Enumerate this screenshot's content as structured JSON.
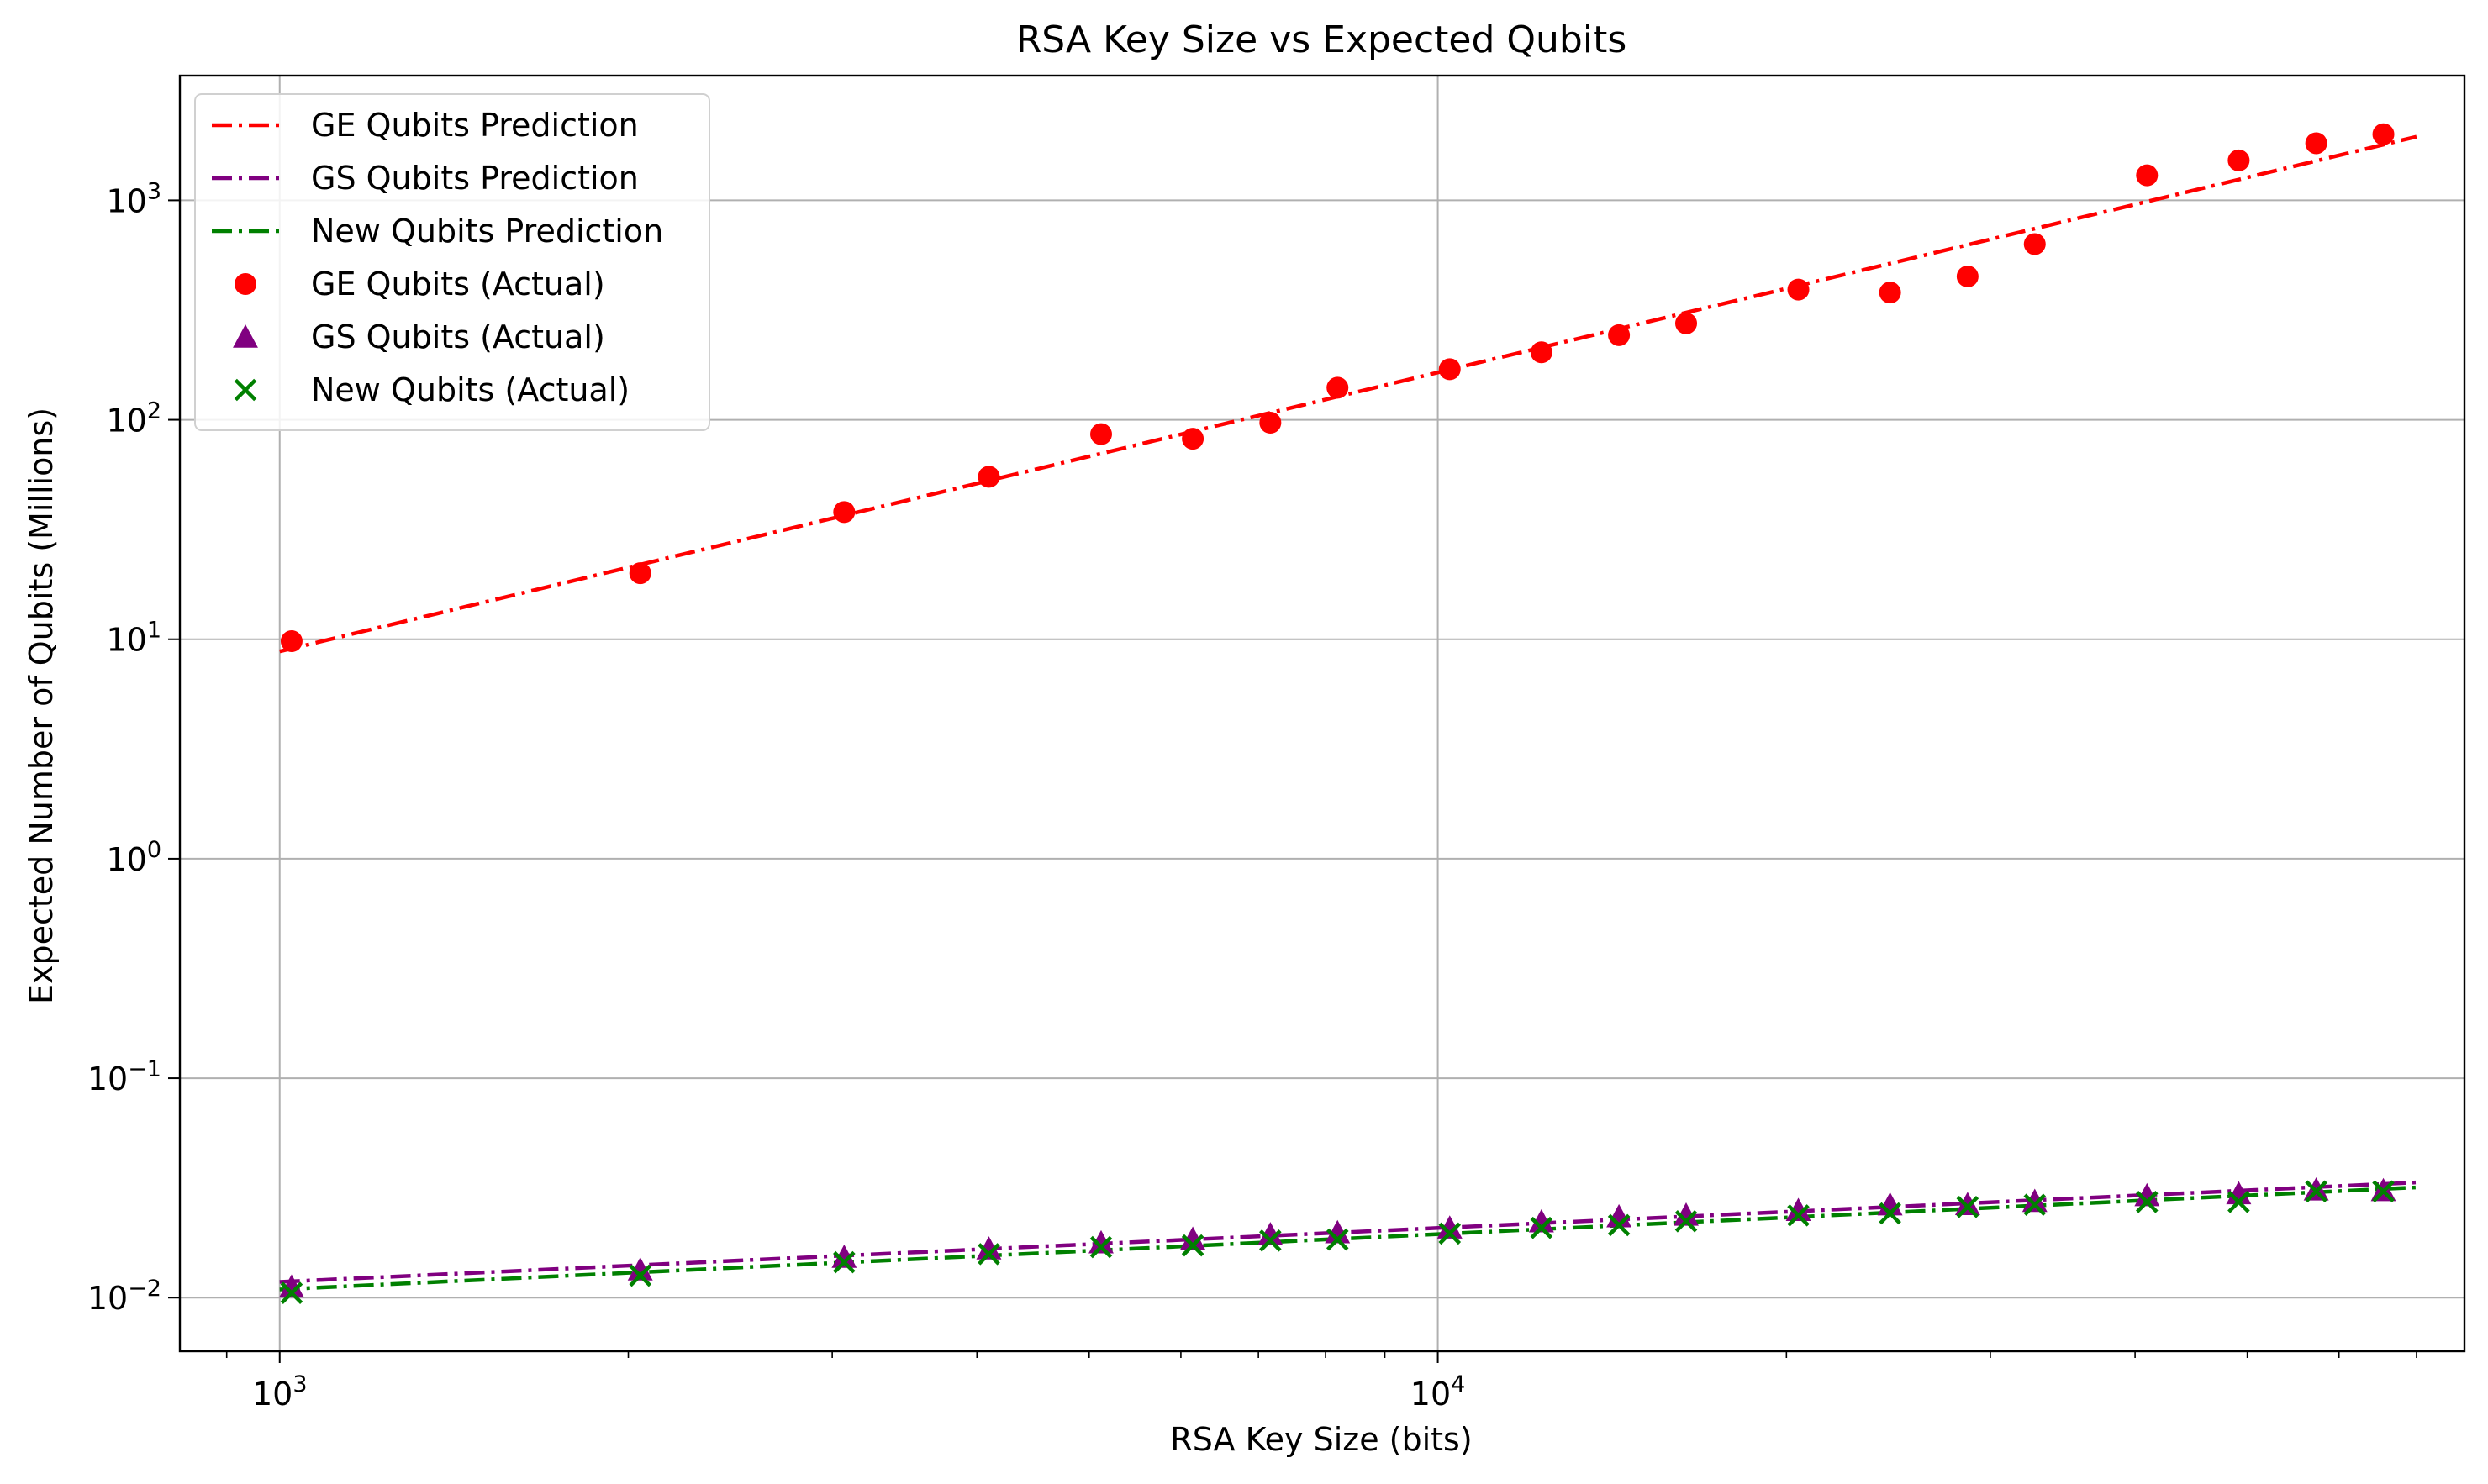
{
  "chart_data": {
    "type": "scatter",
    "title": "RSA Key Size vs Expected Qubits",
    "xlabel": "RSA Key Size (bits)",
    "ylabel": "Expected Number of Qubits (Millions)",
    "xscale": "log",
    "yscale": "log",
    "xlim": [
      820,
      77000
    ],
    "ylim": [
      0.0057,
      3700
    ],
    "grid": true,
    "legend_position": "top-left",
    "x_ticks": [
      {
        "value": 1000,
        "base": "10",
        "exp": "3"
      },
      {
        "value": 10000,
        "base": "10",
        "exp": "4"
      }
    ],
    "y_ticks": [
      {
        "value": 0.01,
        "base": "10",
        "exp": "−2"
      },
      {
        "value": 0.1,
        "base": "10",
        "exp": "−1"
      },
      {
        "value": 1,
        "base": "10",
        "exp": "0"
      },
      {
        "value": 10,
        "base": "10",
        "exp": "1"
      },
      {
        "value": 100,
        "base": "10",
        "exp": "2"
      },
      {
        "value": 1000,
        "base": "10",
        "exp": "3"
      }
    ],
    "x": [
      1024,
      2048,
      3072,
      4096,
      5120,
      6144,
      7168,
      8192,
      10240,
      12288,
      14336,
      16384,
      20480,
      24576,
      28672,
      32768,
      40960,
      49152,
      57344,
      65536
    ],
    "predictions": [
      {
        "name": "GE Qubits Prediction",
        "color": "#ff0000",
        "x": [
          1000,
          70000
        ],
        "y": [
          8.8,
          1950
        ]
      },
      {
        "name": "GS Qubits Prediction",
        "color": "#800080",
        "x": [
          1000,
          70000
        ],
        "y": [
          0.0118,
          0.0335
        ]
      },
      {
        "name": "New Qubits Prediction",
        "color": "#008000",
        "x": [
          1000,
          70000
        ],
        "y": [
          0.0109,
          0.0318
        ]
      }
    ],
    "series": [
      {
        "name": "GE Qubits (Actual)",
        "marker": "circle",
        "color": "#ff0000",
        "values": [
          9.8,
          20,
          38,
          55,
          86,
          82,
          97,
          140,
          170,
          203,
          243,
          275,
          392,
          380,
          450,
          632,
          1300,
          1520,
          1820,
          2000
        ]
      },
      {
        "name": "GS Qubits (Actual)",
        "marker": "triangle",
        "color": "#800080",
        "values": [
          0.0112,
          0.0134,
          0.0153,
          0.0167,
          0.0178,
          0.0185,
          0.0194,
          0.0198,
          0.0208,
          0.0222,
          0.0234,
          0.0238,
          0.025,
          0.0265,
          0.0266,
          0.0275,
          0.0292,
          0.0298,
          0.031,
          0.0308
        ]
      },
      {
        "name": "New Qubits (Actual)",
        "marker": "x",
        "color": "#008000",
        "values": [
          0.0105,
          0.0126,
          0.0145,
          0.0158,
          0.017,
          0.0173,
          0.0182,
          0.0184,
          0.0196,
          0.0208,
          0.0214,
          0.0223,
          0.0237,
          0.0242,
          0.0259,
          0.0265,
          0.0273,
          0.0273,
          0.0305,
          0.0305
        ]
      }
    ]
  }
}
